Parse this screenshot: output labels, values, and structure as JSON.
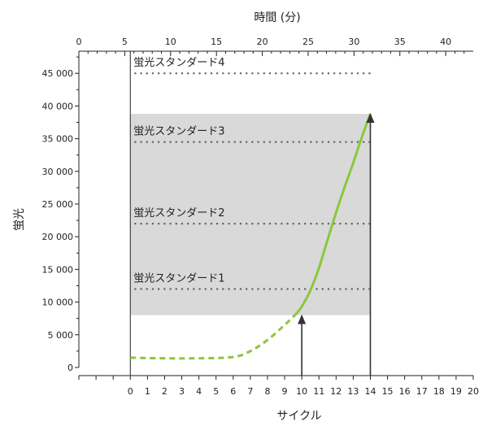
{
  "chart_data": {
    "type": "line",
    "ylabel": "蛍光",
    "xlabel": "サイクル",
    "x2label": "時間 (分)",
    "x_cycle_range": [
      -3,
      20
    ],
    "x_cycle_ticks": [
      0,
      1,
      2,
      3,
      4,
      5,
      6,
      7,
      8,
      9,
      10,
      11,
      12,
      13,
      14,
      15,
      16,
      17,
      18,
      19,
      20
    ],
    "x_time_range": [
      0,
      43
    ],
    "x_time_ticks": [
      0,
      5,
      10,
      15,
      20,
      25,
      30,
      35,
      40
    ],
    "ylim": [
      0,
      50000
    ],
    "y_ticks": [
      0,
      5000,
      10000,
      15000,
      20000,
      25000,
      30000,
      35000,
      40000,
      45000
    ],
    "y_tick_labels": [
      "0",
      "5 000",
      "10 000",
      "15 000",
      "20 000",
      "25 000",
      "30 000",
      "35 000",
      "40 000",
      "45 000"
    ],
    "highlight_region": {
      "x": [
        0,
        14
      ],
      "y": [
        8000,
        38800
      ],
      "color": "#d9d9d9"
    },
    "standards": [
      {
        "label": "蛍光スタンダード1",
        "y": 12000
      },
      {
        "label": "蛍光スタンダード2",
        "y": 22000
      },
      {
        "label": "蛍光スタンダード3",
        "y": 34500
      },
      {
        "label": "蛍光スタンダード4",
        "y": 45000
      }
    ],
    "series": [
      {
        "color": "#8cc63f",
        "dashed_points": [
          [
            0,
            1500
          ],
          [
            2,
            1400
          ],
          [
            4,
            1400
          ],
          [
            6,
            1600
          ],
          [
            7,
            2500
          ],
          [
            8,
            4200
          ],
          [
            9,
            6500
          ],
          [
            9.6,
            8000
          ]
        ],
        "solid_points": [
          [
            9.6,
            8000
          ],
          [
            10,
            9300
          ],
          [
            10.5,
            11800
          ],
          [
            11,
            15200
          ],
          [
            11.5,
            19500
          ],
          [
            12,
            23700
          ],
          [
            12.5,
            27600
          ],
          [
            13,
            31300
          ],
          [
            13.5,
            35200
          ],
          [
            14,
            38800
          ]
        ]
      }
    ],
    "arrows": [
      {
        "x": 10,
        "y_to": 8000
      },
      {
        "x": 14,
        "y_to": 38800
      }
    ],
    "vertical_baseline_x": 0,
    "colors": {
      "axis": "#222222",
      "standard_line": "#666666",
      "arrow": "#333333"
    }
  }
}
